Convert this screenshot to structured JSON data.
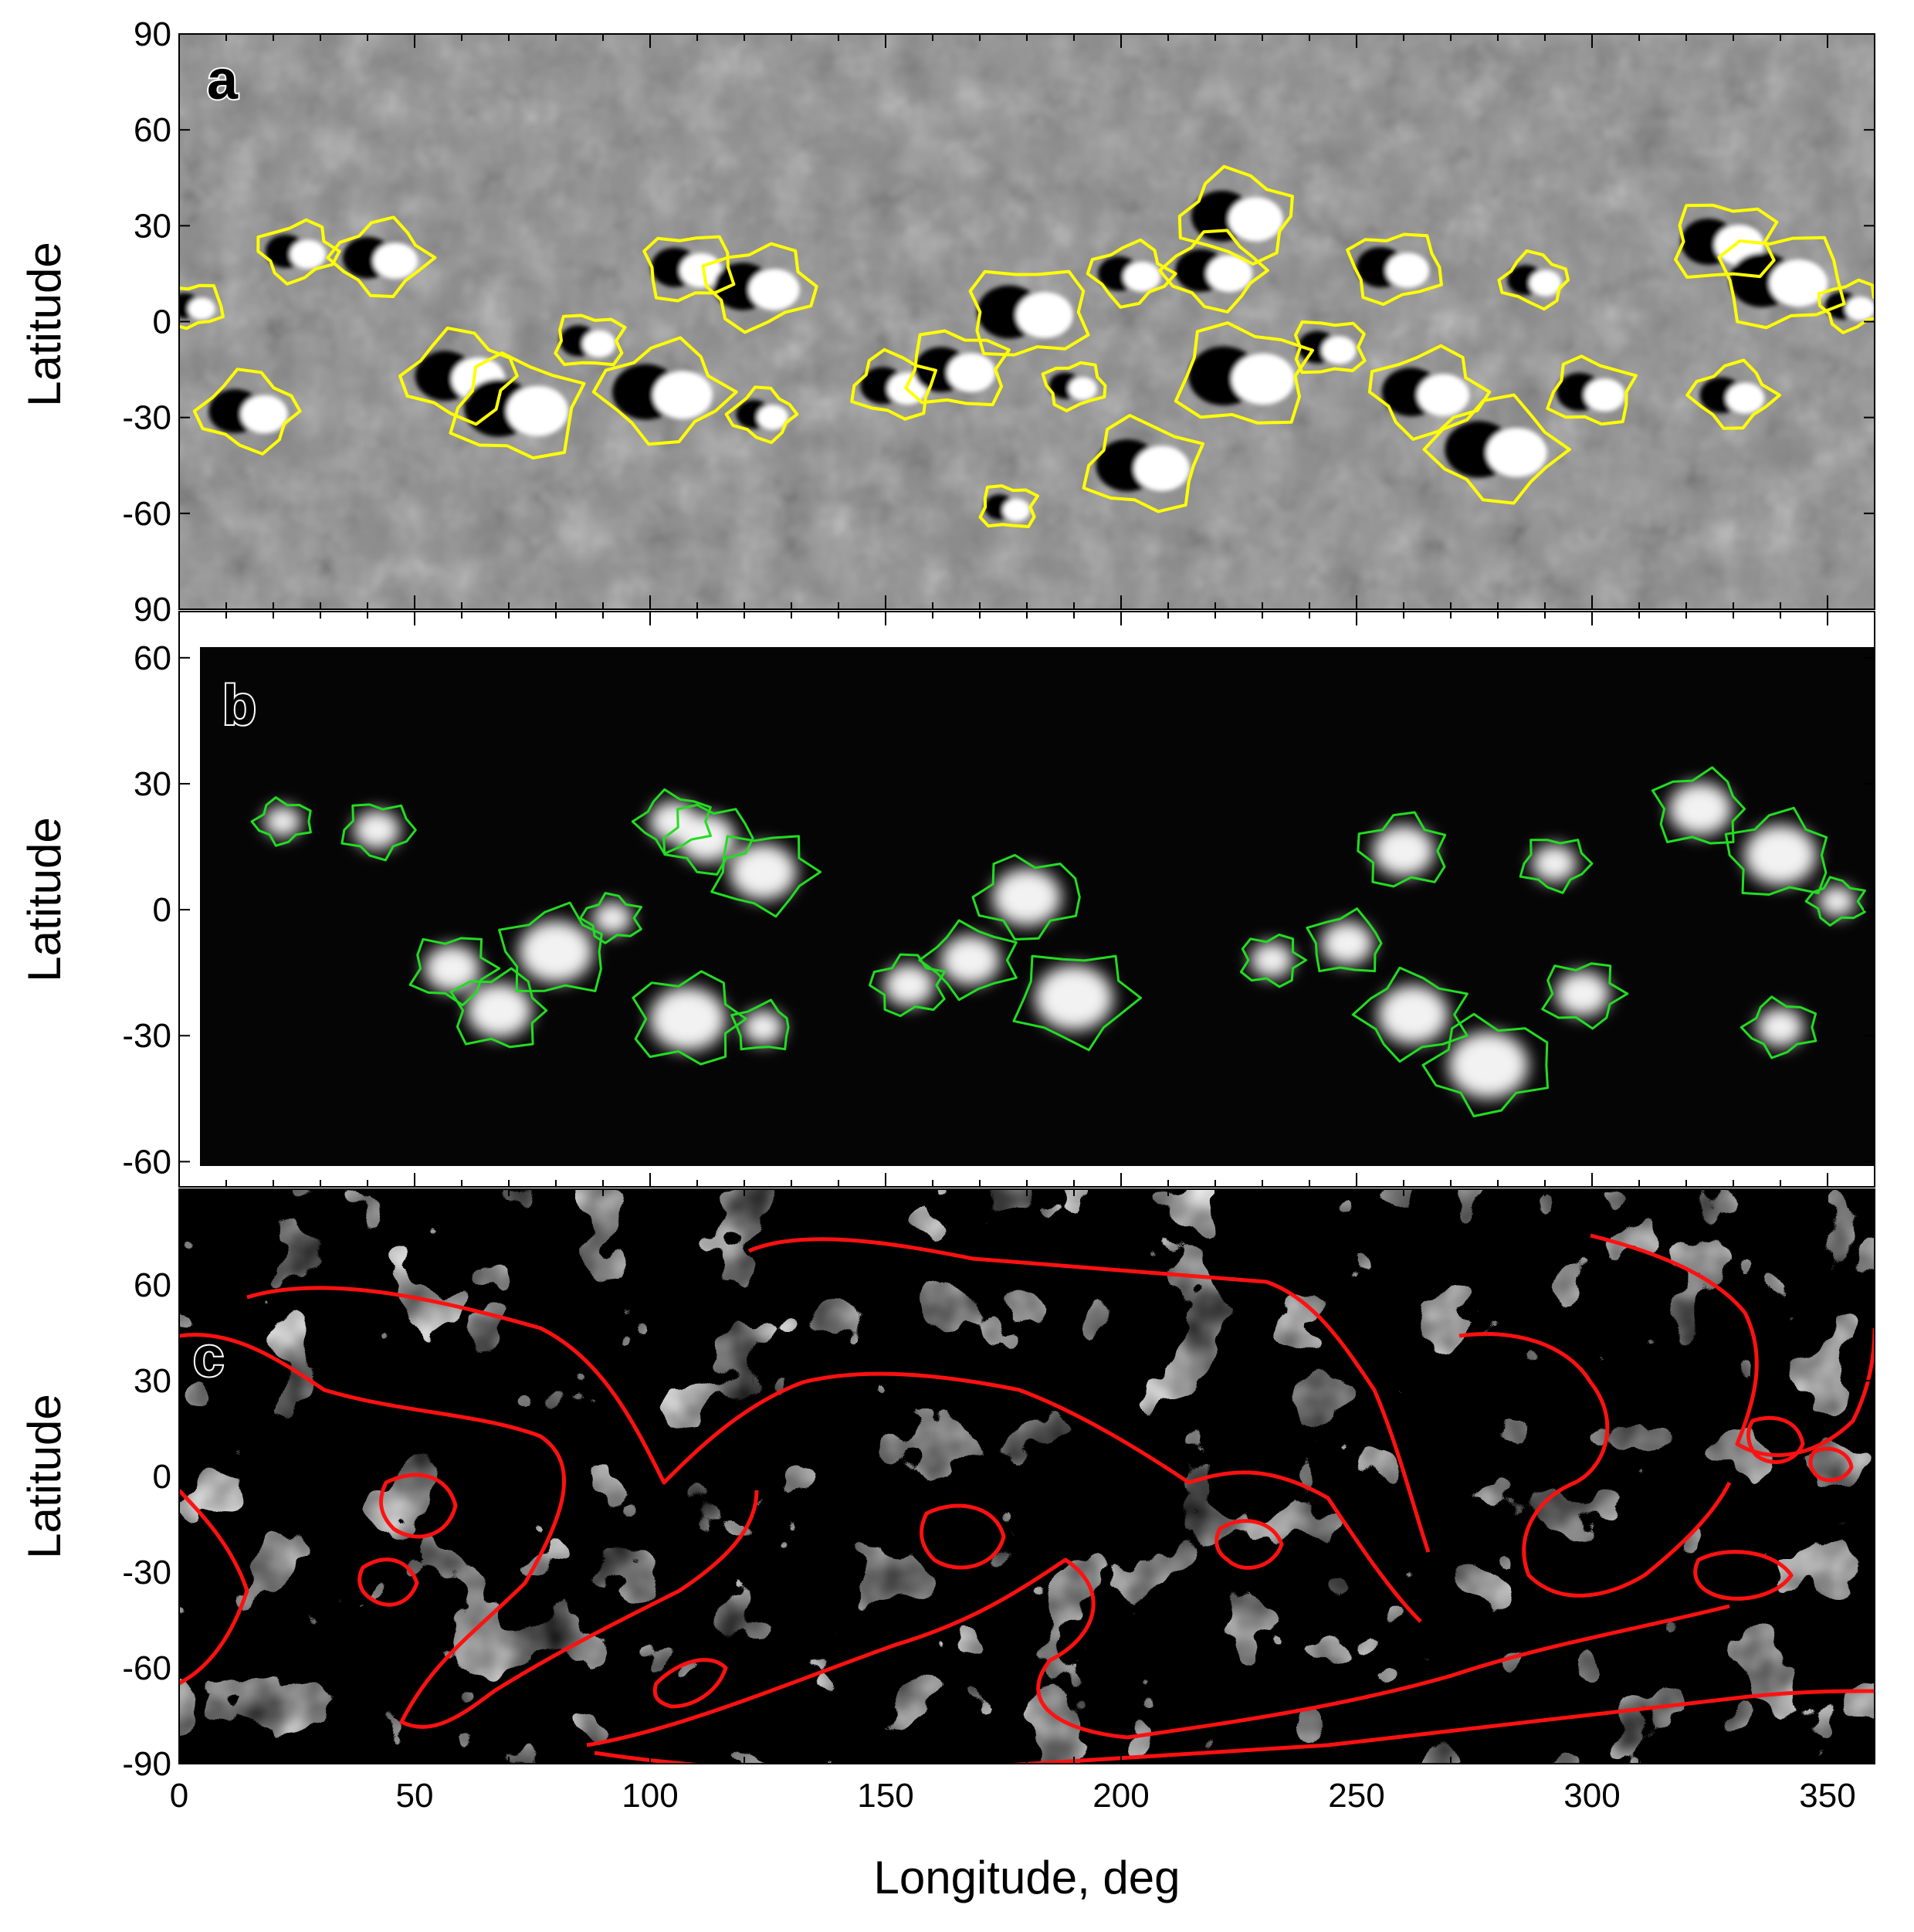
{
  "chart_data": {
    "type": "heatmap",
    "shared_x": {
      "label": "Longitude, deg",
      "range": [
        0,
        360
      ],
      "ticks": [
        0,
        50,
        100,
        150,
        200,
        250,
        300,
        350
      ]
    },
    "panels": [
      {
        "letter": "a",
        "ylabel": "Latitude",
        "lat_range": [
          -90,
          90
        ],
        "yticks": [
          90,
          60,
          30,
          0,
          -30,
          -60,
          90
        ],
        "background": "grayscale",
        "contour_color": "#ffff00",
        "contours": [
          {
            "lon": 3,
            "lat": 5
          },
          {
            "lon": 25,
            "lat": 22
          },
          {
            "lon": 43,
            "lat": 20
          },
          {
            "lon": 60,
            "lat": -17
          },
          {
            "lon": 72,
            "lat": -27
          },
          {
            "lon": 87,
            "lat": -6
          },
          {
            "lon": 108,
            "lat": 17
          },
          {
            "lon": 123,
            "lat": 11
          },
          {
            "lon": 103,
            "lat": -22
          },
          {
            "lon": 124,
            "lat": -29
          },
          {
            "lon": 152,
            "lat": -20
          },
          {
            "lon": 165,
            "lat": -15
          },
          {
            "lon": 180,
            "lat": 3
          },
          {
            "lon": 190,
            "lat": -20
          },
          {
            "lon": 202,
            "lat": 15
          },
          {
            "lon": 220,
            "lat": 16
          },
          {
            "lon": 225,
            "lat": 33
          },
          {
            "lon": 226,
            "lat": -17
          },
          {
            "lon": 244,
            "lat": -8
          },
          {
            "lon": 258,
            "lat": 17
          },
          {
            "lon": 265,
            "lat": -22
          },
          {
            "lon": 280,
            "lat": -40
          },
          {
            "lon": 288,
            "lat": 13
          },
          {
            "lon": 300,
            "lat": -22
          },
          {
            "lon": 328,
            "lat": 25
          },
          {
            "lon": 340,
            "lat": 13
          },
          {
            "lon": 355,
            "lat": 5
          },
          {
            "lon": 330,
            "lat": -23
          },
          {
            "lon": 15,
            "lat": -28
          },
          {
            "lon": 205,
            "lat": -45
          },
          {
            "lon": 176,
            "lat": -58
          }
        ]
      },
      {
        "letter": "b",
        "ylabel": "Latitude",
        "lat_range": [
          -66,
          71
        ],
        "yticks": [
          60,
          30,
          0,
          -30,
          -60
        ],
        "background": "dark-with-bright-patches",
        "contour_color": "#22dd22",
        "bright_patches": [
          {
            "lon": 22,
            "lat": 21
          },
          {
            "lon": 42,
            "lat": 19
          },
          {
            "lon": 58,
            "lat": -14
          },
          {
            "lon": 68,
            "lat": -24
          },
          {
            "lon": 80,
            "lat": -10
          },
          {
            "lon": 92,
            "lat": -2
          },
          {
            "lon": 105,
            "lat": 21
          },
          {
            "lon": 112,
            "lat": 17
          },
          {
            "lon": 124,
            "lat": 9
          },
          {
            "lon": 108,
            "lat": -26
          },
          {
            "lon": 124,
            "lat": -28
          },
          {
            "lon": 155,
            "lat": -18
          },
          {
            "lon": 168,
            "lat": -12
          },
          {
            "lon": 180,
            "lat": 3
          },
          {
            "lon": 190,
            "lat": -21
          },
          {
            "lon": 232,
            "lat": -12
          },
          {
            "lon": 248,
            "lat": -8
          },
          {
            "lon": 260,
            "lat": 14
          },
          {
            "lon": 262,
            "lat": -25
          },
          {
            "lon": 278,
            "lat": -37
          },
          {
            "lon": 292,
            "lat": 11
          },
          {
            "lon": 298,
            "lat": -20
          },
          {
            "lon": 323,
            "lat": 24
          },
          {
            "lon": 340,
            "lat": 13
          },
          {
            "lon": 352,
            "lat": 2
          },
          {
            "lon": 340,
            "lat": -28
          }
        ]
      },
      {
        "letter": "c",
        "ylabel": "Latitude",
        "lat_range": [
          -90,
          90
        ],
        "yticks": [
          60,
          30,
          0,
          -30,
          -60,
          -90
        ],
        "background": "binary",
        "contour_color": "#ff1111"
      }
    ]
  }
}
